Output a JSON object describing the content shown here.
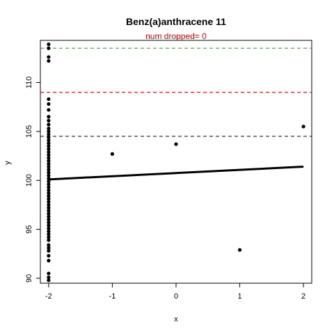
{
  "chart_data": {
    "type": "scatter",
    "title": "Benz(a)anthracene 11",
    "subtitle": "num dropped= 0",
    "subtitle_color": "#e00000",
    "xlabel": "x",
    "ylabel": "y",
    "xlim": [
      -2.13,
      2.13
    ],
    "ylim": [
      89.5,
      114.3
    ],
    "xticks": [
      -2,
      -1,
      0,
      1,
      2
    ],
    "xtick_labels": [
      "-2",
      "-1",
      "0",
      "1",
      "2"
    ],
    "yticks": [
      90,
      95,
      100,
      105,
      110
    ],
    "ytick_labels": [
      "90",
      "95",
      "100",
      "105",
      "110"
    ],
    "grid": false,
    "legend": "none",
    "point_color": "#000000",
    "points": [
      {
        "x": -2,
        "y": 113.9
      },
      {
        "x": -2,
        "y": 113.5
      },
      {
        "x": -2,
        "y": 112.6
      },
      {
        "x": -2,
        "y": 112.2
      },
      {
        "x": -2,
        "y": 108.3
      },
      {
        "x": -2,
        "y": 107.8
      },
      {
        "x": -2,
        "y": 107.2
      },
      {
        "x": -2,
        "y": 106.5
      },
      {
        "x": -2,
        "y": 106.1
      },
      {
        "x": -2,
        "y": 105.7
      },
      {
        "x": -2,
        "y": 105.3
      },
      {
        "x": -2,
        "y": 105.0
      },
      {
        "x": -2,
        "y": 104.7
      },
      {
        "x": -2,
        "y": 104.4
      },
      {
        "x": -2,
        "y": 104.1
      },
      {
        "x": -2,
        "y": 103.8
      },
      {
        "x": -2,
        "y": 103.5
      },
      {
        "x": -2,
        "y": 103.2
      },
      {
        "x": -2,
        "y": 102.9
      },
      {
        "x": -2,
        "y": 102.6
      },
      {
        "x": -2,
        "y": 102.3
      },
      {
        "x": -2,
        "y": 102.0
      },
      {
        "x": -2,
        "y": 101.7
      },
      {
        "x": -2,
        "y": 101.4
      },
      {
        "x": -2,
        "y": 101.1
      },
      {
        "x": -2,
        "y": 100.8
      },
      {
        "x": -2,
        "y": 100.5
      },
      {
        "x": -2,
        "y": 100.2
      },
      {
        "x": -2,
        "y": 99.9
      },
      {
        "x": -2,
        "y": 99.6
      },
      {
        "x": -2,
        "y": 99.3
      },
      {
        "x": -2,
        "y": 99.0
      },
      {
        "x": -2,
        "y": 98.7
      },
      {
        "x": -2,
        "y": 98.4
      },
      {
        "x": -2,
        "y": 98.1
      },
      {
        "x": -2,
        "y": 97.8
      },
      {
        "x": -2,
        "y": 97.5
      },
      {
        "x": -2,
        "y": 97.2
      },
      {
        "x": -2,
        "y": 96.9
      },
      {
        "x": -2,
        "y": 96.6
      },
      {
        "x": -2,
        "y": 96.3
      },
      {
        "x": -2,
        "y": 96.0
      },
      {
        "x": -2,
        "y": 95.7
      },
      {
        "x": -2,
        "y": 95.4
      },
      {
        "x": -2,
        "y": 95.1
      },
      {
        "x": -2,
        "y": 94.8
      },
      {
        "x": -2,
        "y": 94.5
      },
      {
        "x": -2,
        "y": 94.2
      },
      {
        "x": -2,
        "y": 93.9
      },
      {
        "x": -2,
        "y": 93.4
      },
      {
        "x": -2,
        "y": 93.1
      },
      {
        "x": -2,
        "y": 92.8
      },
      {
        "x": -2,
        "y": 92.3
      },
      {
        "x": -2,
        "y": 91.8
      },
      {
        "x": -2,
        "y": 90.5
      },
      {
        "x": -2,
        "y": 90.1
      },
      {
        "x": -2,
        "y": 89.8
      },
      {
        "x": -1,
        "y": 102.7
      },
      {
        "x": 0,
        "y": 103.7
      },
      {
        "x": 1,
        "y": 92.9
      },
      {
        "x": 2,
        "y": 105.5
      }
    ],
    "fit_line": {
      "x": [
        -2,
        2
      ],
      "y": [
        100.1,
        101.4
      ],
      "color": "#000000"
    },
    "reference_lines": [
      {
        "y": 113.5,
        "color": "#00b000",
        "style": "dashed"
      },
      {
        "y": 109.0,
        "color": "#e00000",
        "style": "dashed"
      },
      {
        "y": 104.5,
        "color": "#000000",
        "style": "dashed"
      }
    ]
  }
}
